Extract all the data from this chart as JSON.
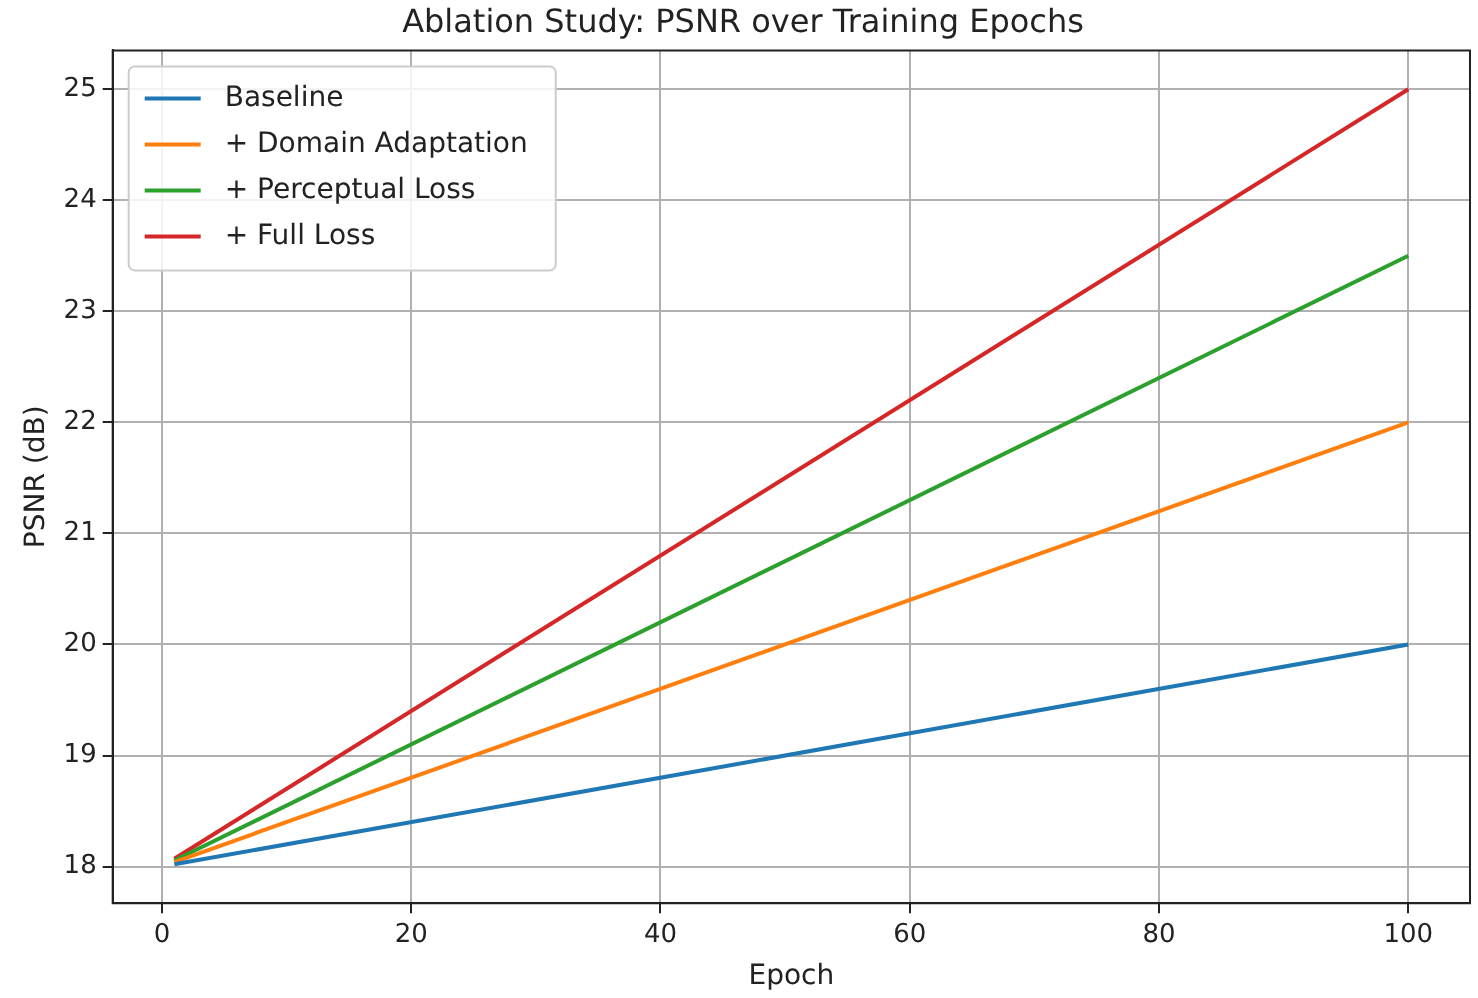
{
  "chart_data": {
    "type": "line",
    "title": "Ablation Study: PSNR over Training Epochs",
    "xlabel": "Epoch",
    "ylabel": "PSNR (dB)",
    "x": [
      1,
      100
    ],
    "series": [
      {
        "name": "Baseline",
        "color": "#1f77b4",
        "values": [
          18.02,
          20
        ]
      },
      {
        "name": "+ Domain Adaptation",
        "color": "#ff7f0e",
        "values": [
          18.04,
          22
        ]
      },
      {
        "name": "+ Perceptual Loss",
        "color": "#2ca02c",
        "values": [
          18.055,
          23.5
        ]
      },
      {
        "name": "+ Full Loss",
        "color": "#d62728",
        "values": [
          18.07,
          25
        ]
      }
    ],
    "xlim": [
      -3.95,
      104.95
    ],
    "xticks": [
      0,
      20,
      40,
      60,
      80,
      100
    ],
    "ylim": [
      17.67,
      25.35
    ],
    "yticks": [
      18,
      19,
      20,
      21,
      22,
      23,
      24,
      25
    ],
    "grid": true,
    "legend": "top left",
    "marker": "none",
    "line_style": "solid"
  }
}
